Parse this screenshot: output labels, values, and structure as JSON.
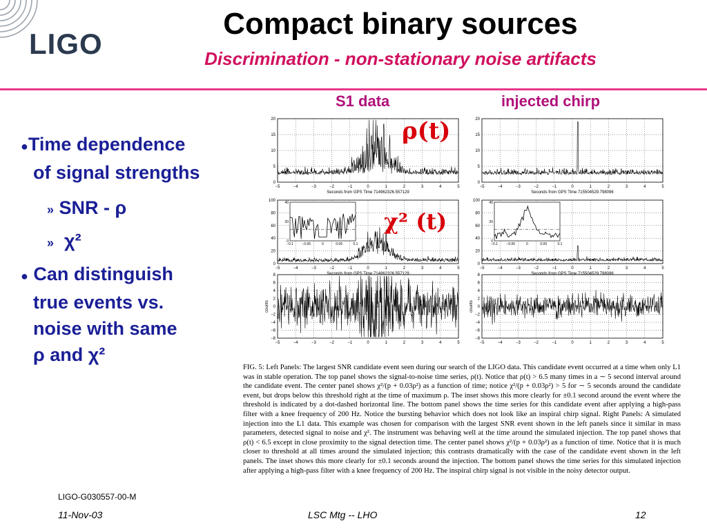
{
  "header": {
    "logo_text": "LIGO",
    "title": "Compact binary sources",
    "subtitle": "Discrimination - non-stationary noise artifacts"
  },
  "columns": {
    "left": "S1 data",
    "right": "injected chirp"
  },
  "bullets": {
    "b1_line1": "Time dependence",
    "b1_line2": "of signal strengths",
    "sub1": "SNR - ρ",
    "sub2": "χ²",
    "b2_line1": "Can distinguish",
    "b2_line2": "true events vs.",
    "b2_line3": "noise with same",
    "b2_line4": "ρ and χ²"
  },
  "overlays": {
    "rho": "ρ(t)",
    "chi": "χ² (t)"
  },
  "panels": {
    "xlabel_left": "Seconds from GPS Time 714962326.557129",
    "xlabel_right": "Seconds from GPS Time 715504529.798096",
    "ylabel_counts": "counts",
    "x_ticks": [
      "−5",
      "−4",
      "−3",
      "−2",
      "−1",
      "0",
      "1",
      "2",
      "3",
      "4",
      "5"
    ],
    "rho_ticks": [
      "0",
      "5",
      "10",
      "15",
      "20"
    ],
    "chi_ticks": [
      "0",
      "20",
      "40",
      "60",
      "80",
      "100"
    ],
    "counts_ticks": [
      "−8",
      "−6",
      "−4",
      "−2",
      "0",
      "2",
      "4",
      "6",
      "8"
    ],
    "inset_x": [
      "−0.1",
      "−0.05",
      "0",
      "0.05",
      "0.1"
    ],
    "inset_y": [
      "0",
      "20",
      "40"
    ]
  },
  "caption": "FIG. 5: Left Panels: The largest SNR candidate event seen during our search of the LIGO data. This candidate event occurred at a time when only L1 was in stable operation. The top panel shows the signal-to-noise time series, ρ(t). Notice that ρ(t) > 6.5 many times in a ∼ 5 second interval around the candidate event. The center panel shows χ²/(p + 0.03ρ²) as a function of time; notice χ²/(p + 0.03ρ²) > 5 for ∼ 5 seconds around the candidate event, but drops below this threshold right at the time of maximum ρ. The inset shows this more clearly for ±0.1 second around the event where the threshold is indicated by a dot-dashed horizontal line. The bottom panel shows the time series for this candidate event after applying a high-pass filter with a knee frequency of 200 Hz. Notice the bursting behavior which does not look like an inspiral chirp signal. Right Panels: A simulated injection into the L1 data. This example was chosen for comparison with the largest SNR event shown in the left panels since it similar in mass parameters, detected signal to noise and χ². The instrument was behaving well at the time around the simulated injection. The top panel shows that ρ(t) < 6.5 except in close proximity to the signal detection time. The center panel shows χ²/(p + 0.03ρ²) as a function of time. Notice that it is much closer to threshold at all times around the simulated injection; this contrasts dramatically with the case of the candidate event shown in the left panels. The inset shows this more clearly for ±0.1 seconds around the injection. The bottom panel shows the time series for this simulated injection after applying a high-pass filter with a knee frequency of 200 Hz. The inspiral chirp signal is not visible in the noisy detector output.",
  "footer": {
    "doc_id": "LIGO-G030557-00-M",
    "date": "11-Nov-03",
    "meeting": "LSC Mtg -- LHO",
    "page": "12"
  },
  "colors": {
    "title": "#000000",
    "subtitle": "#d0105e",
    "bullet": "#1a1f96",
    "accent_red": "#d8000a",
    "rule": "#e8358a",
    "column_label": "#b0107a"
  }
}
